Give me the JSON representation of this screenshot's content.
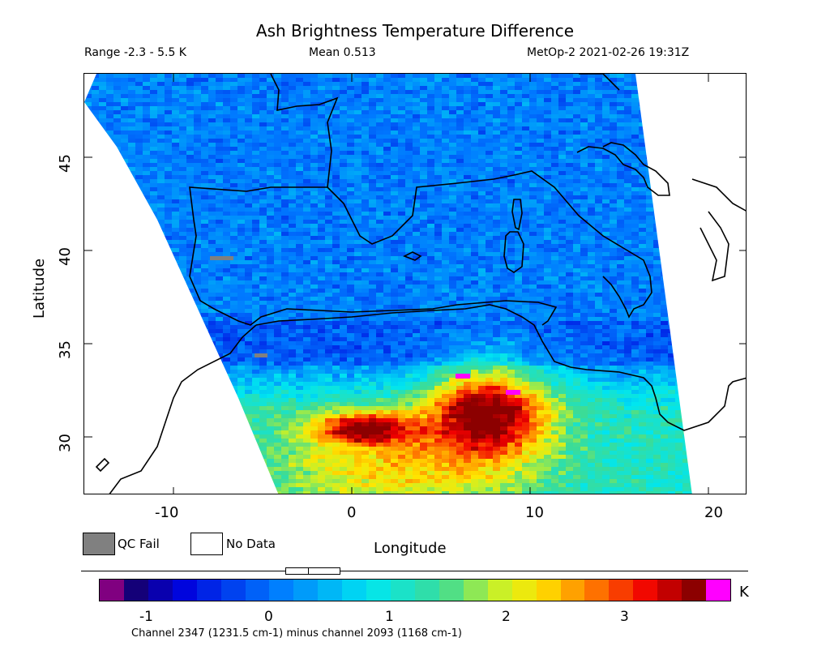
{
  "header": {
    "title": "Ash Brightness Temperature Difference",
    "range_text": "Range -2.3 - 5.5 K",
    "mean_text": "Mean 0.513",
    "satellite_text": "MetOp-2 2021-02-26 19:31Z"
  },
  "map": {
    "lon_range": [
      -15,
      21.5
    ],
    "lat_range": [
      26.7,
      49.6
    ],
    "lon_ticks": [
      "-10",
      "0",
      "10",
      "20"
    ],
    "lat_ticks": [
      "45",
      "40",
      "35",
      "30"
    ],
    "xlabel": "Longitude",
    "ylabel": "Latitude"
  },
  "legend": {
    "qc_fail": "QC Fail",
    "no_data": "No Data",
    "qc_color": "#808080"
  },
  "colorbar": {
    "unit": "K",
    "ticks": [
      "-1",
      "0",
      "1",
      "2",
      "3"
    ],
    "min": -1.5,
    "max": 3.7,
    "under_color": "#800080",
    "over_color": "#ff00ff",
    "caption": "Channel 2347 (1231.5 cm-1) minus channel 2093 (1168 cm-1)"
  }
}
